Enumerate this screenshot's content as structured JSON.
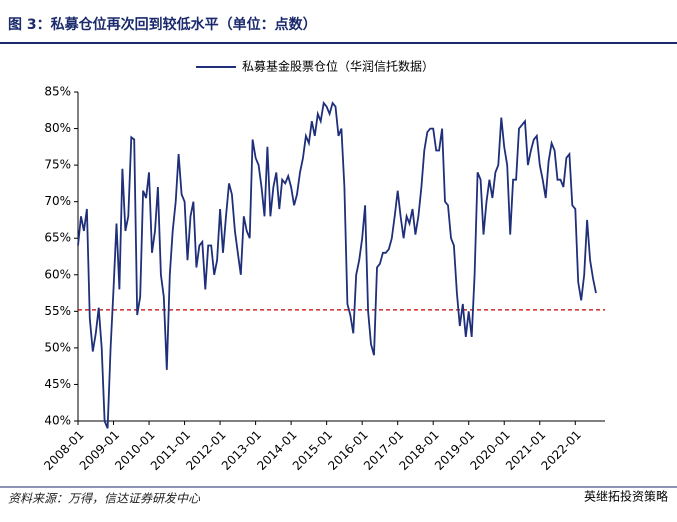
{
  "chart_data": {
    "type": "line",
    "title": "图 3：私募仓位再次回到较低水平（单位：点数）",
    "source": "资料来源：万得，信达证券研发中心",
    "watermark": "英继拓投资策略",
    "categories": [
      "2008-01",
      null,
      null,
      null,
      null,
      null,
      null,
      null,
      null,
      null,
      null,
      null,
      "2009-01",
      null,
      null,
      null,
      null,
      null,
      null,
      null,
      null,
      null,
      null,
      null,
      "2010-01",
      null,
      null,
      null,
      null,
      null,
      null,
      null,
      null,
      null,
      null,
      null,
      "2011-01",
      null,
      null,
      null,
      null,
      null,
      null,
      null,
      null,
      null,
      null,
      null,
      "2012-01",
      null,
      null,
      null,
      null,
      null,
      null,
      null,
      null,
      null,
      null,
      null,
      "2013-01",
      null,
      null,
      null,
      null,
      null,
      null,
      null,
      null,
      null,
      null,
      null,
      "2014-01",
      null,
      null,
      null,
      null,
      null,
      null,
      null,
      null,
      null,
      null,
      null,
      "2015-01",
      null,
      null,
      null,
      null,
      null,
      null,
      null,
      null,
      null,
      null,
      null,
      "2016-01",
      null,
      null,
      null,
      null,
      null,
      null,
      null,
      null,
      null,
      null,
      null,
      "2017-01",
      null,
      null,
      null,
      null,
      null,
      null,
      null,
      null,
      null,
      null,
      null,
      "2018-01",
      null,
      null,
      null,
      null,
      null,
      null,
      null,
      null,
      null,
      null,
      null,
      "2019-01",
      null,
      null,
      null,
      null,
      null,
      null,
      null,
      null,
      null,
      null,
      null,
      "2020-01",
      null,
      null,
      null,
      null,
      null,
      null,
      null,
      null,
      null,
      null,
      null,
      "2021-01",
      null,
      null,
      null,
      null,
      null,
      null,
      null,
      null,
      null,
      null,
      null,
      "2022-01",
      null,
      null,
      null,
      null,
      null,
      null,
      null
    ],
    "series": [
      {
        "name": "私募基金股票仓位（华润信托数据）",
        "color": "#1f2f7a",
        "values": [
          64,
          68,
          66,
          69,
          54,
          49.5,
          52,
          55.5,
          50,
          40,
          39,
          50,
          58,
          67,
          58,
          74.5,
          66,
          68,
          78.8,
          78.5,
          54.5,
          57,
          71.5,
          70.5,
          74,
          63,
          66,
          72,
          60,
          57,
          47,
          60,
          66,
          70,
          76.5,
          71,
          70,
          62,
          68,
          70,
          61,
          64,
          64.5,
          58,
          64,
          64,
          60,
          62,
          69,
          63,
          68,
          72.5,
          71,
          66,
          63,
          60,
          68,
          66,
          65,
          78.5,
          76,
          75,
          72,
          68,
          77.5,
          68,
          72,
          74,
          69,
          73,
          72.5,
          73.5,
          72,
          69.5,
          71,
          74,
          76,
          79,
          78,
          81,
          79,
          82,
          81,
          83.5,
          83,
          82,
          83.5,
          83,
          79,
          80,
          72,
          56,
          54.5,
          52,
          60,
          62,
          65,
          69.5,
          55,
          50.5,
          49,
          61,
          61.5,
          63,
          63,
          63.5,
          65,
          68,
          71.5,
          68,
          65,
          68,
          67,
          69,
          65.5,
          68,
          72,
          77,
          79.5,
          80,
          80,
          77,
          77,
          80,
          70,
          69.5,
          65,
          64,
          57.5,
          53,
          56,
          51.5,
          55,
          51.5,
          60,
          74,
          73,
          65.5,
          70,
          73,
          70.5,
          74,
          75,
          81.5,
          77.5,
          75,
          65.5,
          73,
          73,
          80,
          80.5,
          81,
          75,
          77,
          78.5,
          79,
          75,
          73,
          70.5,
          75.5,
          78,
          77,
          73,
          73,
          72,
          76,
          76.5,
          69.5,
          69,
          59,
          56.5,
          60,
          67.5,
          62,
          59.5,
          57.5
        ]
      }
    ],
    "reference_line": {
      "value": 55.2,
      "color": "#c00000"
    },
    "ylim": [
      40,
      85
    ],
    "yticks": [
      {
        "value": 40,
        "label": "40%"
      },
      {
        "value": 45,
        "label": "45%"
      },
      {
        "value": 50,
        "label": "50%"
      },
      {
        "value": 55,
        "label": "55%"
      },
      {
        "value": 60,
        "label": "60%"
      },
      {
        "value": 65,
        "label": "65%"
      },
      {
        "value": 70,
        "label": "70%"
      },
      {
        "value": 75,
        "label": "75%"
      },
      {
        "value": 80,
        "label": "80%"
      },
      {
        "value": 85,
        "label": "85%"
      }
    ],
    "legend": "top"
  }
}
